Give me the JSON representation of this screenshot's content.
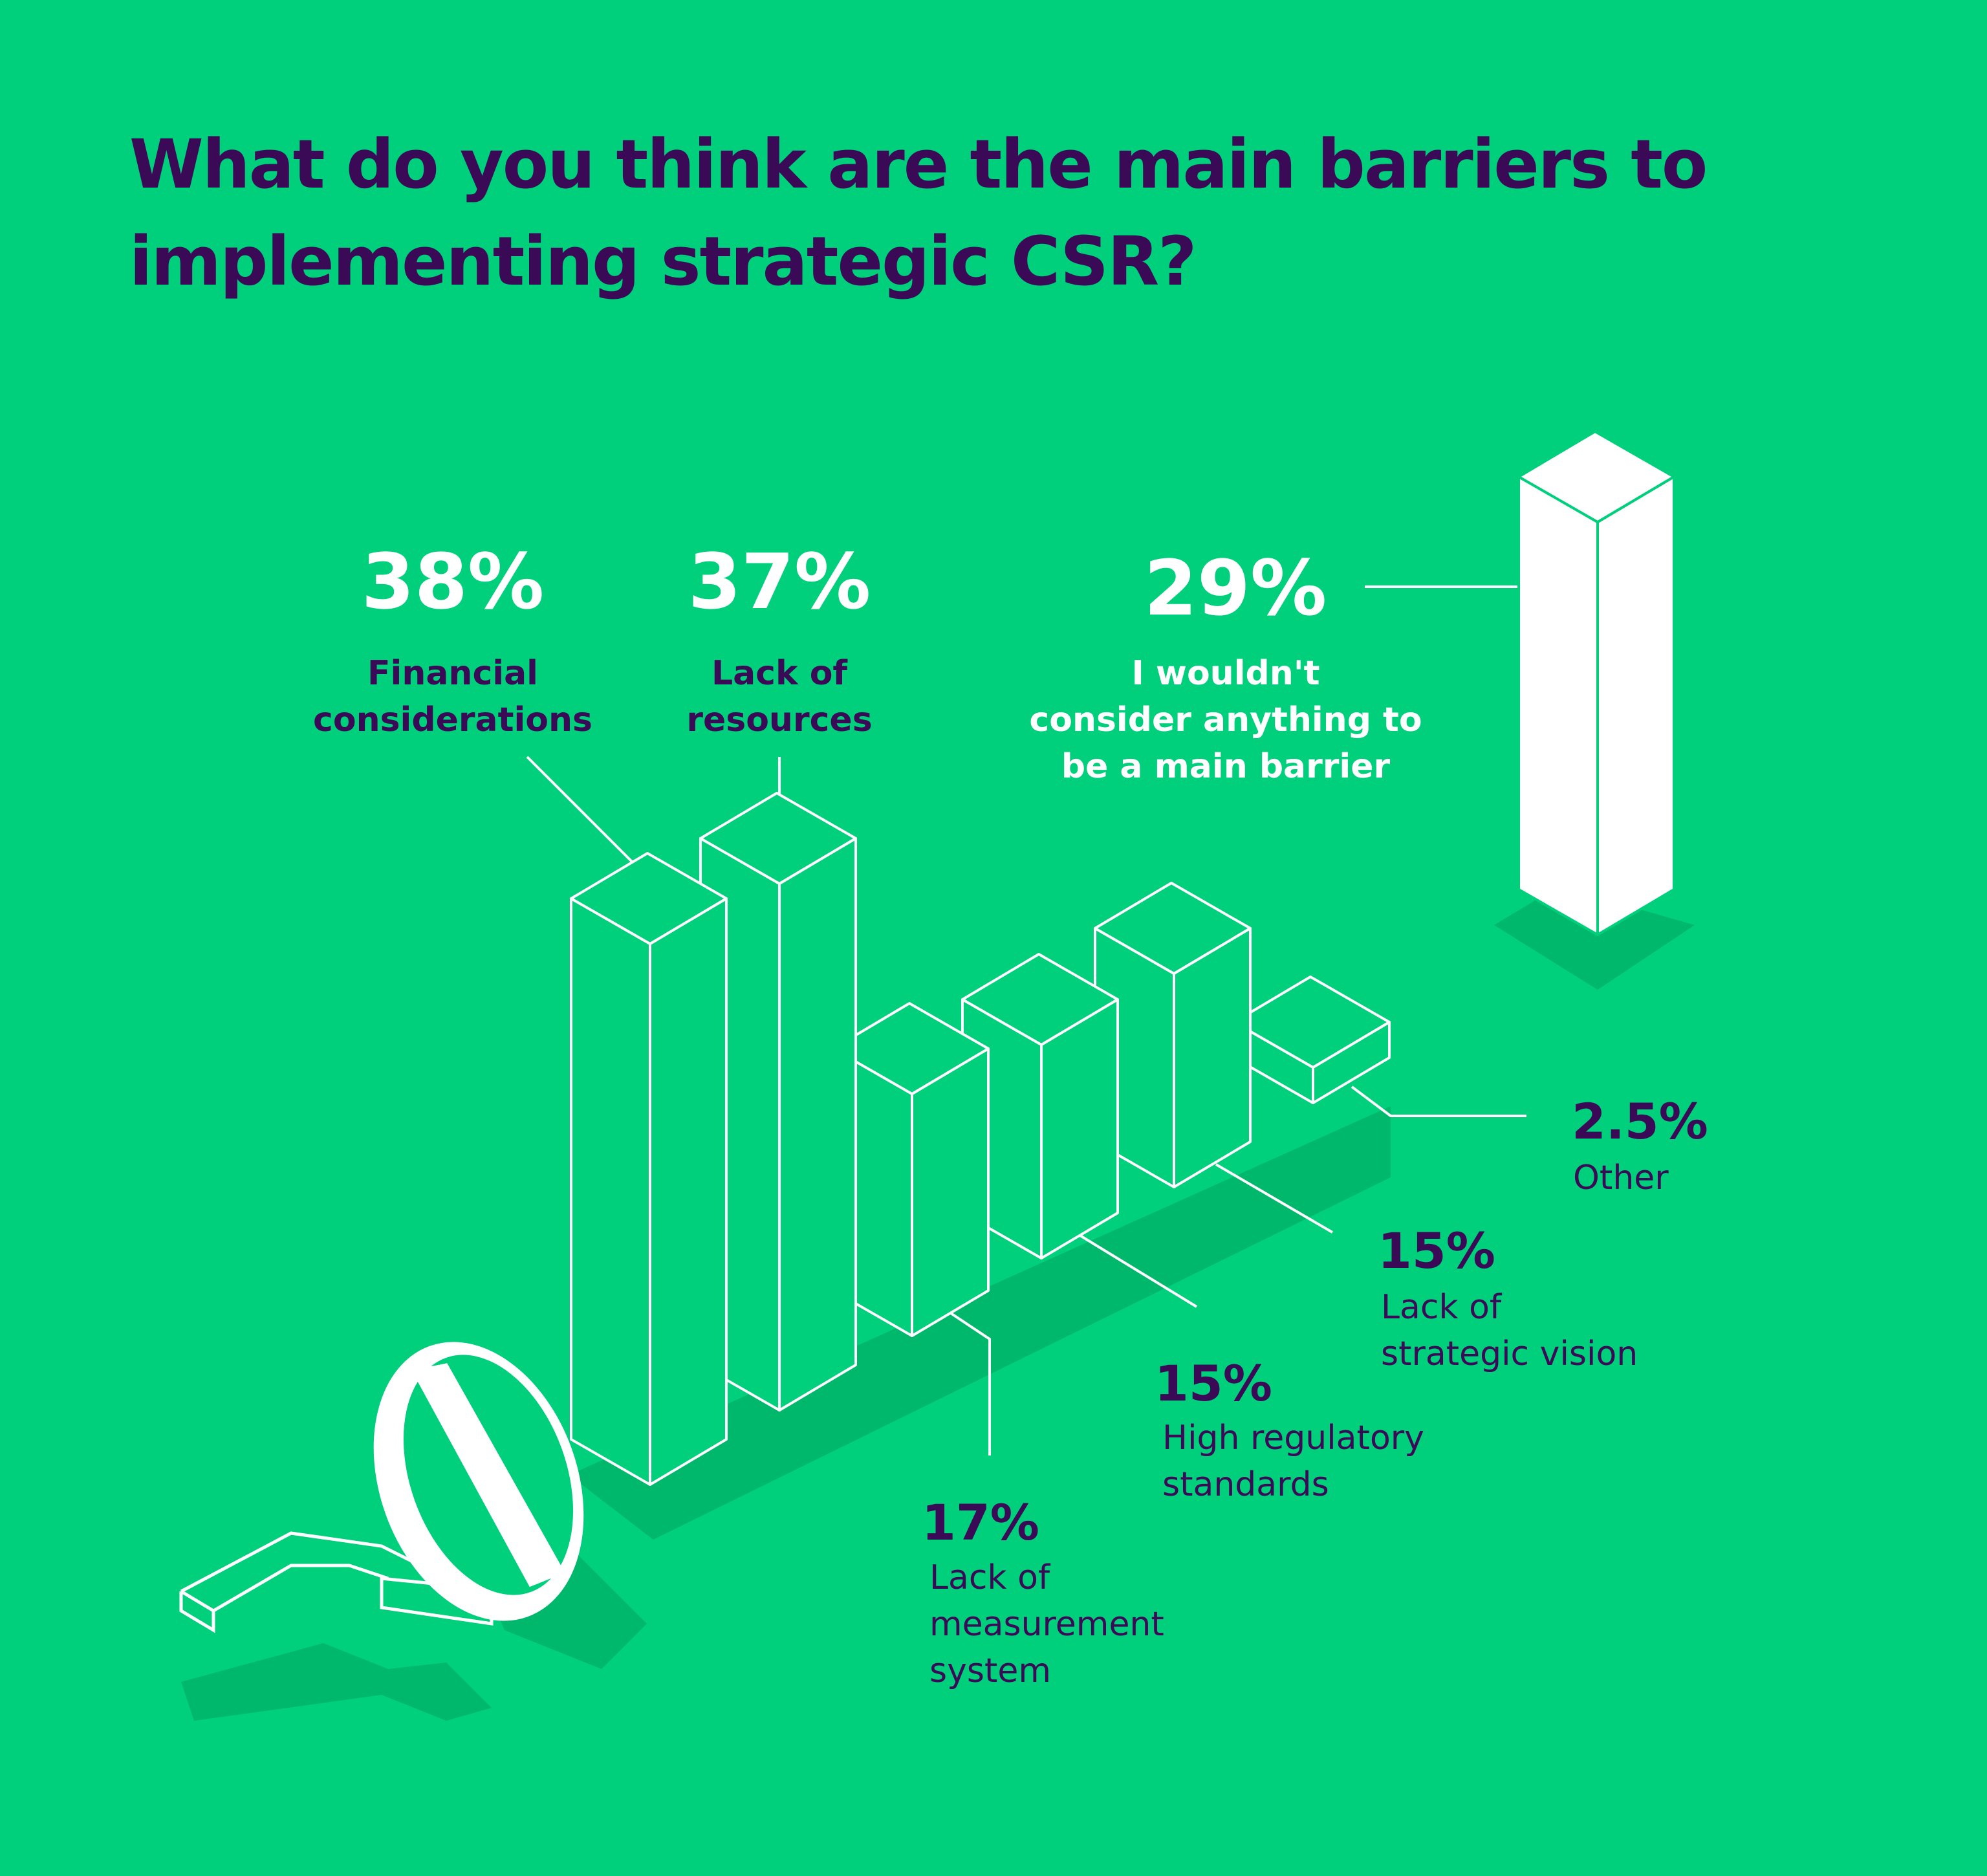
{
  "chart_data": {
    "type": "bar",
    "title": "What do you think are the main barriers to implementing strategic CSR?",
    "title_lines": [
      "What do you think are the main barriers to",
      "implementing strategic CSR?"
    ],
    "unit": "%",
    "categories": [
      "Financial considerations",
      "Lack of resources",
      "Lack of measurement system",
      "High regulatory standards",
      "Lack of strategic vision",
      "Other",
      "I wouldn't consider anything to be a main barrier"
    ],
    "values": [
      38,
      37,
      17,
      15,
      15,
      2.5,
      29
    ],
    "value_labels": [
      "38%",
      "37%",
      "17%",
      "15%",
      "15%",
      "2.5%",
      "29%"
    ],
    "label_lines": [
      [
        "Financial",
        "considerations"
      ],
      [
        "Lack of",
        "resources"
      ],
      [
        "Lack of",
        "measurement",
        "system"
      ],
      [
        "High regulatory",
        "standards"
      ],
      [
        "Lack of",
        "strategic vision"
      ],
      [
        "Other"
      ],
      [
        "I wouldn't",
        "consider anything to",
        "be a main barrier"
      ]
    ]
  },
  "colors": {
    "background": "#00cf7c",
    "title": "#3b0a57",
    "shadow": "#00b86b",
    "line": "#ffffff",
    "highlight_bar": "#ffffff"
  }
}
